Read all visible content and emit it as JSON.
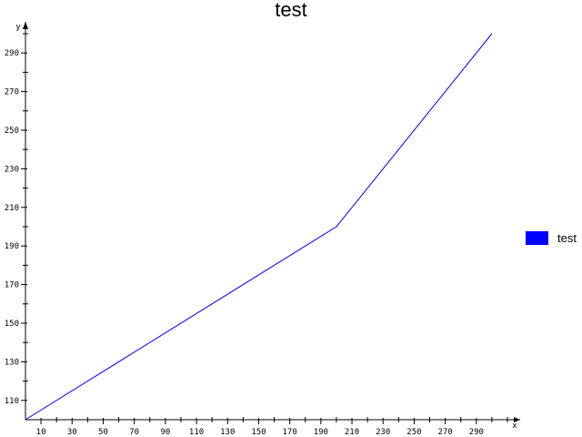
{
  "chart_data": {
    "type": "line",
    "title": "test",
    "xlabel": "x",
    "ylabel": "y",
    "xlim": [
      0,
      310
    ],
    "ylim": [
      100,
      300
    ],
    "x_ticks": [
      10,
      30,
      50,
      70,
      90,
      110,
      130,
      150,
      170,
      190,
      210,
      230,
      250,
      270,
      290
    ],
    "y_ticks": [
      110,
      130,
      150,
      170,
      190,
      210,
      230,
      250,
      270,
      290
    ],
    "grid": false,
    "legend_position": "right",
    "series": [
      {
        "name": "test",
        "color": "#0000ff",
        "x": [
          0,
          200,
          300
        ],
        "y": [
          100,
          200,
          300
        ]
      }
    ]
  }
}
